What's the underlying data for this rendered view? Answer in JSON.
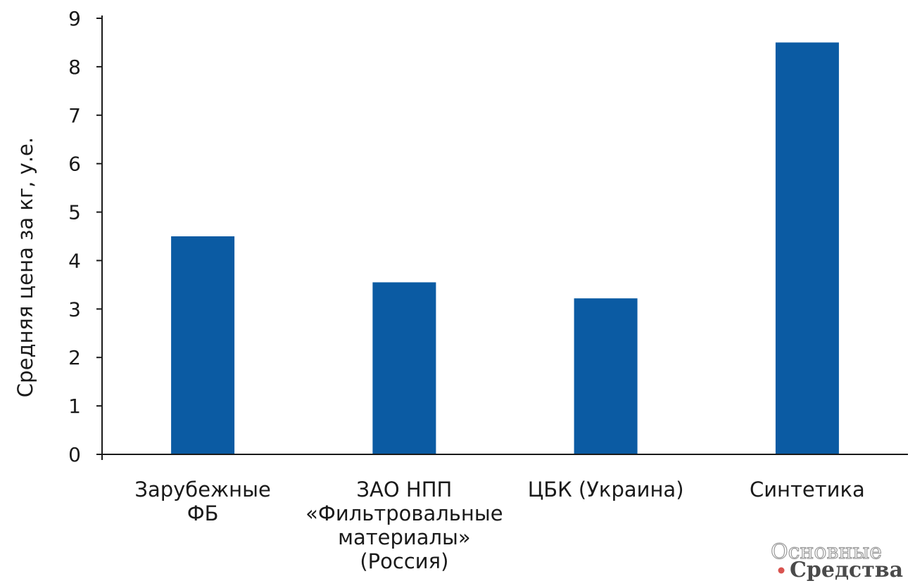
{
  "chart_data": {
    "type": "bar",
    "categories": [
      [
        "Зарубежные",
        "ФБ"
      ],
      [
        "ЗАО НПП",
        "«Фильтровальные",
        "материалы»",
        "(Россия)"
      ],
      [
        "ЦБК (Украина)"
      ],
      [
        "Синтетика"
      ]
    ],
    "values": [
      4.5,
      3.55,
      3.22,
      8.5
    ],
    "ylabel": "Средняя цена за кг, у.е.",
    "ylim": [
      0,
      9
    ],
    "yticks": [
      "0",
      "1",
      "2",
      "3",
      "4",
      "5",
      "6",
      "7",
      "8",
      "9"
    ],
    "grid": false,
    "bar_color": "#0b5ba3",
    "axis_color": "#1a1a1a"
  },
  "watermark": {
    "line1": "Основные",
    "line2": "Средства",
    "dot_color": "#d9534f"
  }
}
